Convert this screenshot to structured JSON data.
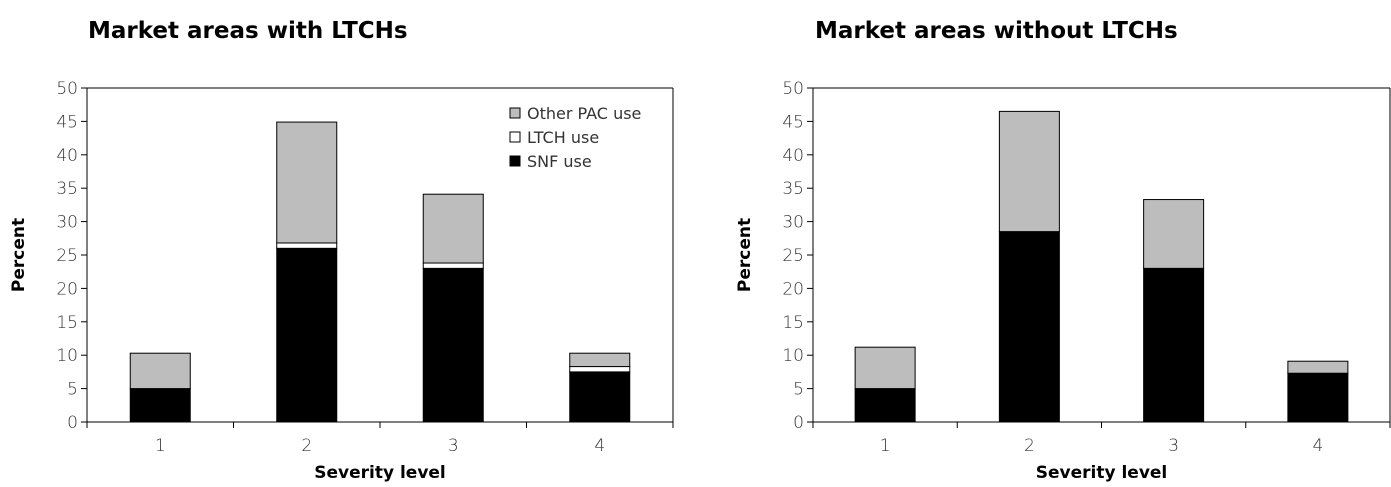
{
  "chart_data": [
    {
      "type": "bar",
      "stacked": true,
      "title": "Market areas with LTCHs",
      "xlabel": "Severity level",
      "ylabel": "Percent",
      "categories": [
        "1",
        "2",
        "3",
        "4"
      ],
      "ylim": [
        0,
        50
      ],
      "yticks": [
        "0",
        "5",
        "10",
        "15",
        "20",
        "25",
        "30",
        "35",
        "40",
        "45",
        "50"
      ],
      "legend_position": "top-right",
      "series": [
        {
          "name": "SNF use",
          "color": "#000000",
          "values": [
            5.0,
            26.0,
            23.0,
            7.5
          ]
        },
        {
          "name": "LTCH use",
          "color": "#ffffff",
          "values": [
            0.0,
            0.8,
            0.8,
            0.8
          ]
        },
        {
          "name": "Other PAC use",
          "color": "#bdbdbd",
          "values": [
            5.3,
            18.1,
            10.3,
            2.0
          ]
        }
      ],
      "legend_order": [
        "Other PAC use",
        "LTCH use",
        "SNF use"
      ]
    },
    {
      "type": "bar",
      "stacked": true,
      "title": "Market areas without LTCHs",
      "xlabel": "Severity level",
      "ylabel": "Percent",
      "categories": [
        "1",
        "2",
        "3",
        "4"
      ],
      "ylim": [
        0,
        50
      ],
      "yticks": [
        "0",
        "5",
        "10",
        "15",
        "20",
        "25",
        "30",
        "35",
        "40",
        "45",
        "50"
      ],
      "series": [
        {
          "color": "#000000",
          "values": [
            5.0,
            28.5,
            23.0,
            7.3
          ]
        },
        {
          "color": "#bdbdbd",
          "values": [
            6.2,
            18.0,
            10.3,
            1.8
          ]
        }
      ]
    }
  ]
}
